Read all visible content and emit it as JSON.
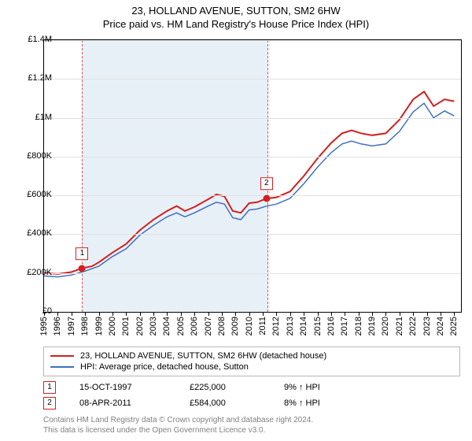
{
  "title_line1": "23, HOLLAND AVENUE, SUTTON, SM2 6HW",
  "title_line2": "Price paid vs. HM Land Registry's House Price Index (HPI)",
  "chart": {
    "type": "line",
    "x_start": 1995.0,
    "x_end": 2025.5,
    "ylim": [
      0,
      1400000
    ],
    "ytick_step": 200000,
    "ylabels": [
      "£0",
      "£200K",
      "£400K",
      "£600K",
      "£800K",
      "£1M",
      "£1.2M",
      "£1.4M"
    ],
    "xyears": [
      1995,
      1996,
      1997,
      1998,
      1999,
      2000,
      2001,
      2002,
      2003,
      2004,
      2005,
      2006,
      2007,
      2008,
      2009,
      2010,
      2011,
      2012,
      2013,
      2014,
      2015,
      2016,
      2017,
      2018,
      2019,
      2020,
      2021,
      2022,
      2023,
      2024,
      2025
    ],
    "grid_color": "#e0e0e0",
    "background_color": "#ffffff",
    "shade_color": "#e8f0f7",
    "shade_border": "#e05050",
    "shade_start": 1997.79,
    "shade_end": 2011.27,
    "series": [
      {
        "name": "price_paid",
        "color": "#d02020",
        "width": 2,
        "points": [
          [
            1995.0,
            200
          ],
          [
            1996.0,
            195
          ],
          [
            1997.0,
            205
          ],
          [
            1997.79,
            225
          ],
          [
            1998.5,
            235
          ],
          [
            1999.0,
            255
          ],
          [
            2000.0,
            305
          ],
          [
            2001.0,
            350
          ],
          [
            2002.0,
            420
          ],
          [
            2003.0,
            475
          ],
          [
            2004.0,
            520
          ],
          [
            2004.7,
            545
          ],
          [
            2005.3,
            520
          ],
          [
            2006.0,
            540
          ],
          [
            2007.0,
            580
          ],
          [
            2007.6,
            605
          ],
          [
            2008.2,
            595
          ],
          [
            2008.8,
            520
          ],
          [
            2009.4,
            510
          ],
          [
            2010.0,
            560
          ],
          [
            2010.6,
            565
          ],
          [
            2011.27,
            584
          ],
          [
            2012.0,
            590
          ],
          [
            2013.0,
            620
          ],
          [
            2014.0,
            700
          ],
          [
            2015.0,
            790
          ],
          [
            2016.0,
            870
          ],
          [
            2016.8,
            920
          ],
          [
            2017.5,
            935
          ],
          [
            2018.2,
            920
          ],
          [
            2019.0,
            910
          ],
          [
            2020.0,
            920
          ],
          [
            2021.0,
            990
          ],
          [
            2022.0,
            1095
          ],
          [
            2022.8,
            1135
          ],
          [
            2023.5,
            1060
          ],
          [
            2024.3,
            1095
          ],
          [
            2025.0,
            1085
          ]
        ]
      },
      {
        "name": "hpi",
        "color": "#4070c0",
        "width": 1.5,
        "points": [
          [
            1995.0,
            185
          ],
          [
            1996.0,
            180
          ],
          [
            1997.0,
            190
          ],
          [
            1998.0,
            210
          ],
          [
            1999.0,
            235
          ],
          [
            2000.0,
            285
          ],
          [
            2001.0,
            325
          ],
          [
            2002.0,
            395
          ],
          [
            2003.0,
            445
          ],
          [
            2004.0,
            490
          ],
          [
            2004.7,
            510
          ],
          [
            2005.3,
            490
          ],
          [
            2006.0,
            510
          ],
          [
            2007.0,
            545
          ],
          [
            2007.6,
            565
          ],
          [
            2008.2,
            555
          ],
          [
            2008.8,
            485
          ],
          [
            2009.4,
            475
          ],
          [
            2010.0,
            525
          ],
          [
            2010.6,
            530
          ],
          [
            2011.27,
            545
          ],
          [
            2012.0,
            555
          ],
          [
            2013.0,
            585
          ],
          [
            2014.0,
            660
          ],
          [
            2015.0,
            745
          ],
          [
            2016.0,
            820
          ],
          [
            2016.8,
            865
          ],
          [
            2017.5,
            880
          ],
          [
            2018.2,
            865
          ],
          [
            2019.0,
            855
          ],
          [
            2020.0,
            865
          ],
          [
            2021.0,
            930
          ],
          [
            2022.0,
            1030
          ],
          [
            2022.8,
            1075
          ],
          [
            2023.5,
            1000
          ],
          [
            2024.3,
            1035
          ],
          [
            2025.0,
            1010
          ]
        ]
      }
    ],
    "markers": [
      {
        "label": "1",
        "x": 1997.79,
        "y": 225
      },
      {
        "label": "2",
        "x": 2011.27,
        "y": 584
      }
    ]
  },
  "legend": [
    {
      "color": "#d02020",
      "label": "23, HOLLAND AVENUE, SUTTON, SM2 6HW (detached house)"
    },
    {
      "color": "#4070c0",
      "label": "HPI: Average price, detached house, Sutton"
    }
  ],
  "sales": [
    {
      "marker": "1",
      "date": "15-OCT-1997",
      "price": "£225,000",
      "pct": "9% ↑ HPI"
    },
    {
      "marker": "2",
      "date": "08-APR-2011",
      "price": "£584,000",
      "pct": "8% ↑ HPI"
    }
  ],
  "footer_line1": "Contains HM Land Registry data © Crown copyright and database right 2024.",
  "footer_line2": "This data is licensed under the Open Government Licence v3.0."
}
